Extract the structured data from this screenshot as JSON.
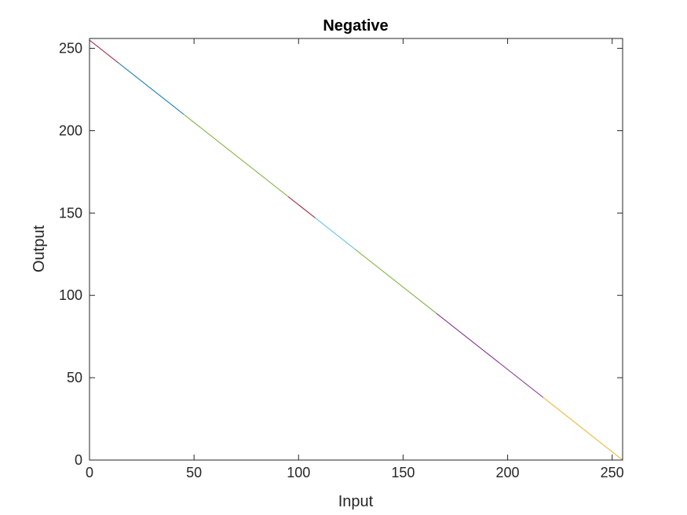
{
  "chart_data": {
    "type": "line",
    "title": "Negative",
    "xlabel": "Input",
    "ylabel": "Output",
    "xlim": [
      0,
      255
    ],
    "ylim": [
      0,
      256
    ],
    "xticks": [
      0,
      50,
      100,
      150,
      200,
      250
    ],
    "yticks": [
      0,
      50,
      100,
      150,
      200,
      250
    ],
    "grid": false,
    "legend": "none",
    "segments": [
      {
        "x": [
          0,
          14
        ],
        "y": [
          255,
          241
        ],
        "color": "#A2142F"
      },
      {
        "x": [
          14,
          45
        ],
        "y": [
          241,
          210
        ],
        "color": "#0072BD"
      },
      {
        "x": [
          45,
          95
        ],
        "y": [
          210,
          160
        ],
        "color": "#77AC30"
      },
      {
        "x": [
          95,
          108
        ],
        "y": [
          160,
          147
        ],
        "color": "#A2142F"
      },
      {
        "x": [
          108,
          127
        ],
        "y": [
          147,
          128
        ],
        "color": "#4DBEEE"
      },
      {
        "x": [
          127,
          166
        ],
        "y": [
          128,
          89
        ],
        "color": "#77AC30"
      },
      {
        "x": [
          166,
          217
        ],
        "y": [
          89,
          38
        ],
        "color": "#7E2F8E"
      },
      {
        "x": [
          217,
          255
        ],
        "y": [
          38,
          0
        ],
        "color": "#EDB120"
      }
    ]
  }
}
